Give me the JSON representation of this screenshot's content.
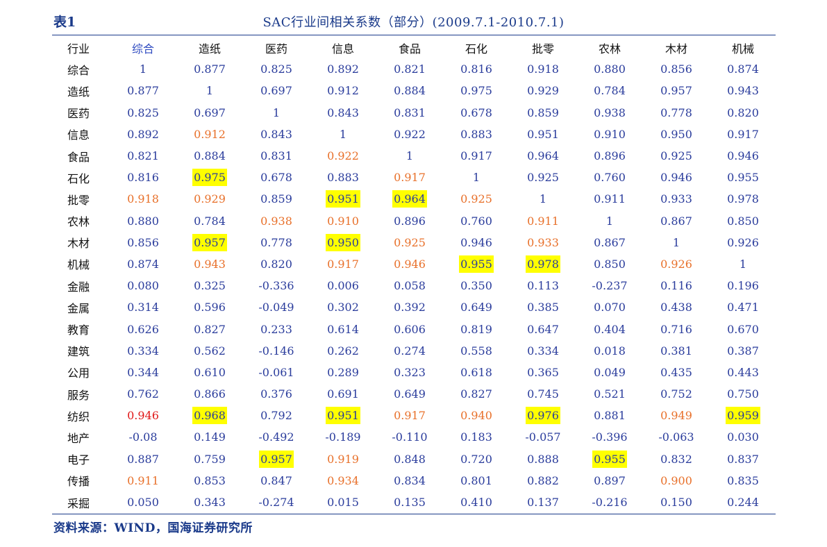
{
  "table_label": "表1",
  "title": "SAC行业间相关系数（部分）(2009.7.1-2010.7.1)",
  "columns": [
    "行业",
    "综合",
    "造纸",
    "医药",
    "信息",
    "食品",
    "石化",
    "批零",
    "农林",
    "木材",
    "机械"
  ],
  "highlighted_header": "综合",
  "highlight_colors": {
    "default_text": "#2a3c9c",
    "orange_text": "#e8702a",
    "red_text": "#e01818",
    "yellow_background": "#ffff00"
  },
  "rows": [
    {
      "name": "综合",
      "values": [
        "1",
        "0.877",
        "0.825",
        "0.892",
        "0.821",
        "0.816",
        "0.918",
        "0.880",
        "0.856",
        "0.874"
      ],
      "styles": [
        "",
        "",
        "",
        "",
        "",
        "",
        "",
        "",
        "",
        ""
      ]
    },
    {
      "name": "造纸",
      "values": [
        "0.877",
        "1",
        "0.697",
        "0.912",
        "0.884",
        "0.975",
        "0.929",
        "0.784",
        "0.957",
        "0.943"
      ],
      "styles": [
        "",
        "",
        "",
        "",
        "",
        "",
        "",
        "",
        "",
        ""
      ]
    },
    {
      "name": "医药",
      "values": [
        "0.825",
        "0.697",
        "1",
        "0.843",
        "0.831",
        "0.678",
        "0.859",
        "0.938",
        "0.778",
        "0.820"
      ],
      "styles": [
        "",
        "",
        "",
        "",
        "",
        "",
        "",
        "",
        "",
        ""
      ]
    },
    {
      "name": "信息",
      "values": [
        "0.892",
        "0.912",
        "0.843",
        "1",
        "0.922",
        "0.883",
        "0.951",
        "0.910",
        "0.950",
        "0.917"
      ],
      "styles": [
        "",
        "orange",
        "",
        "",
        "",
        "",
        "",
        "",
        "",
        ""
      ]
    },
    {
      "name": "食品",
      "values": [
        "0.821",
        "0.884",
        "0.831",
        "0.922",
        "1",
        "0.917",
        "0.964",
        "0.896",
        "0.925",
        "0.946"
      ],
      "styles": [
        "",
        "",
        "",
        "orange",
        "",
        "",
        "",
        "",
        "",
        ""
      ]
    },
    {
      "name": "石化",
      "values": [
        "0.816",
        "0.975",
        "0.678",
        "0.883",
        "0.917",
        "1",
        "0.925",
        "0.760",
        "0.946",
        "0.955"
      ],
      "styles": [
        "",
        "yellow",
        "",
        "",
        "orange",
        "",
        "",
        "",
        "",
        ""
      ]
    },
    {
      "name": "批零",
      "values": [
        "0.918",
        "0.929",
        "0.859",
        "0.951",
        "0.964",
        "0.925",
        "1",
        "0.911",
        "0.933",
        "0.978"
      ],
      "styles": [
        "orange",
        "orange",
        "",
        "yellow",
        "yellow",
        "orange",
        "",
        "",
        "",
        ""
      ]
    },
    {
      "name": "农林",
      "values": [
        "0.880",
        "0.784",
        "0.938",
        "0.910",
        "0.896",
        "0.760",
        "0.911",
        "1",
        "0.867",
        "0.850"
      ],
      "styles": [
        "",
        "",
        "orange",
        "orange",
        "",
        "",
        "orange",
        "",
        "",
        ""
      ]
    },
    {
      "name": "木材",
      "values": [
        "0.856",
        "0.957",
        "0.778",
        "0.950",
        "0.925",
        "0.946",
        "0.933",
        "0.867",
        "1",
        "0.926"
      ],
      "styles": [
        "",
        "yellow",
        "",
        "yellow",
        "orange",
        "",
        "orange",
        "",
        "",
        ""
      ]
    },
    {
      "name": "机械",
      "values": [
        "0.874",
        "0.943",
        "0.820",
        "0.917",
        "0.946",
        "0.955",
        "0.978",
        "0.850",
        "0.926",
        "1"
      ],
      "styles": [
        "",
        "orange",
        "",
        "orange",
        "orange",
        "yellow",
        "yellow",
        "",
        "orange",
        ""
      ]
    },
    {
      "name": "金融",
      "values": [
        "0.080",
        "0.325",
        "-0.336",
        "0.006",
        "0.058",
        "0.350",
        "0.113",
        "-0.237",
        "0.116",
        "0.196"
      ],
      "styles": [
        "",
        "",
        "",
        "",
        "",
        "",
        "",
        "",
        "",
        ""
      ]
    },
    {
      "name": "金属",
      "values": [
        "0.314",
        "0.596",
        "-0.049",
        "0.302",
        "0.392",
        "0.649",
        "0.385",
        "0.070",
        "0.438",
        "0.471"
      ],
      "styles": [
        "",
        "",
        "",
        "",
        "",
        "",
        "",
        "",
        "",
        ""
      ]
    },
    {
      "name": "教育",
      "values": [
        "0.626",
        "0.827",
        "0.233",
        "0.614",
        "0.606",
        "0.819",
        "0.647",
        "0.404",
        "0.716",
        "0.670"
      ],
      "styles": [
        "",
        "",
        "",
        "",
        "",
        "",
        "",
        "",
        "",
        ""
      ]
    },
    {
      "name": "建筑",
      "values": [
        "0.334",
        "0.562",
        "-0.146",
        "0.262",
        "0.274",
        "0.558",
        "0.334",
        "0.018",
        "0.381",
        "0.387"
      ],
      "styles": [
        "",
        "",
        "",
        "",
        "",
        "",
        "",
        "",
        "",
        ""
      ]
    },
    {
      "name": "公用",
      "values": [
        "0.344",
        "0.610",
        "-0.061",
        "0.289",
        "0.323",
        "0.618",
        "0.365",
        "0.049",
        "0.435",
        "0.443"
      ],
      "styles": [
        "",
        "",
        "",
        "",
        "",
        "",
        "",
        "",
        "",
        ""
      ]
    },
    {
      "name": "服务",
      "values": [
        "0.762",
        "0.866",
        "0.376",
        "0.691",
        "0.649",
        "0.827",
        "0.745",
        "0.521",
        "0.752",
        "0.750"
      ],
      "styles": [
        "",
        "",
        "",
        "",
        "",
        "",
        "",
        "",
        "",
        ""
      ]
    },
    {
      "name": "纺织",
      "values": [
        "0.946",
        "0.968",
        "0.792",
        "0.951",
        "0.917",
        "0.940",
        "0.976",
        "0.881",
        "0.949",
        "0.959"
      ],
      "styles": [
        "red",
        "yellow",
        "",
        "yellow",
        "orange",
        "orange",
        "yellow",
        "",
        "orange",
        "yellow"
      ]
    },
    {
      "name": "地产",
      "values": [
        "-0.08",
        "0.149",
        "-0.492",
        "-0.189",
        "-0.110",
        "0.183",
        "-0.057",
        "-0.396",
        "-0.063",
        "0.030"
      ],
      "styles": [
        "",
        "",
        "",
        "",
        "",
        "",
        "",
        "",
        "",
        ""
      ]
    },
    {
      "name": "电子",
      "values": [
        "0.887",
        "0.759",
        "0.957",
        "0.919",
        "0.848",
        "0.720",
        "0.888",
        "0.955",
        "0.832",
        "0.837"
      ],
      "styles": [
        "",
        "",
        "yellow",
        "orange",
        "",
        "",
        "",
        "yellow",
        "",
        ""
      ]
    },
    {
      "name": "传播",
      "values": [
        "0.911",
        "0.853",
        "0.847",
        "0.934",
        "0.834",
        "0.801",
        "0.882",
        "0.897",
        "0.900",
        "0.835"
      ],
      "styles": [
        "orange",
        "",
        "",
        "orange",
        "",
        "",
        "",
        "",
        "orange",
        ""
      ]
    },
    {
      "name": "采掘",
      "values": [
        "0.050",
        "0.343",
        "-0.274",
        "0.015",
        "0.135",
        "0.410",
        "0.137",
        "-0.216",
        "0.150",
        "0.244"
      ],
      "styles": [
        "",
        "",
        "",
        "",
        "",
        "",
        "",
        "",
        "",
        ""
      ]
    }
  ],
  "source": "资料来源：WIND，国海证券研究所"
}
